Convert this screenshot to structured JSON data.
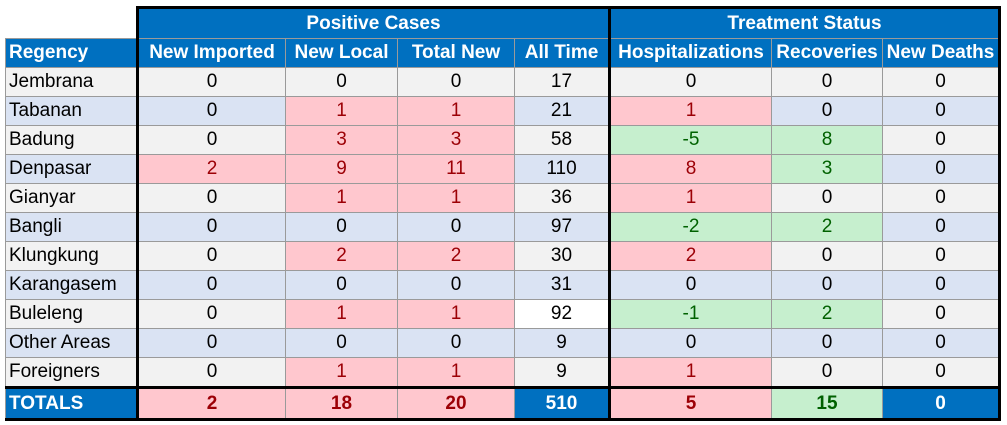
{
  "chart_data": {
    "type": "table",
    "group_headers": {
      "positive": "Positive Cases",
      "treatment": "Treatment Status"
    },
    "columns": [
      "Regency",
      "New Imported",
      "New Local",
      "Total New",
      "All Time",
      "Hospitalizations",
      "Recoveries",
      "New Deaths"
    ],
    "rows": [
      [
        "Jembrana",
        "0",
        "0",
        "0",
        "17",
        "0",
        "0",
        "0"
      ],
      [
        "Tabanan",
        "0",
        "1",
        "1",
        "21",
        "1",
        "0",
        "0"
      ],
      [
        "Badung",
        "0",
        "3",
        "3",
        "58",
        "-5",
        "8",
        "0"
      ],
      [
        "Denpasar",
        "2",
        "9",
        "11",
        "110",
        "8",
        "3",
        "0"
      ],
      [
        "Gianyar",
        "0",
        "1",
        "1",
        "36",
        "1",
        "0",
        "0"
      ],
      [
        "Bangli",
        "0",
        "0",
        "0",
        "97",
        "-2",
        "2",
        "0"
      ],
      [
        "Klungkung",
        "0",
        "2",
        "2",
        "30",
        "2",
        "0",
        "0"
      ],
      [
        "Karangasem",
        "0",
        "0",
        "0",
        "31",
        "0",
        "0",
        "0"
      ],
      [
        "Buleleng",
        "0",
        "1",
        "1",
        "92",
        "-1",
        "2",
        "0"
      ],
      [
        "Other Areas",
        "0",
        "0",
        "0",
        "9",
        "0",
        "0",
        "0"
      ],
      [
        "Foreigners",
        "0",
        "1",
        "1",
        "9",
        "1",
        "0",
        "0"
      ]
    ],
    "totals": [
      "TOTALS",
      "2",
      "18",
      "20",
      "510",
      "5",
      "15",
      "0"
    ]
  },
  "colors": {
    "header_blue": "#0070c0",
    "positive_fill": "#ffc7ce",
    "negative_fill": "#c6efce",
    "row_odd": "#f2f2f2",
    "row_even": "#dae3f3"
  }
}
